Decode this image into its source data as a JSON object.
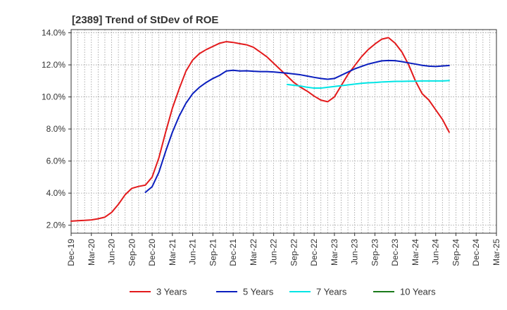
{
  "chart_data": {
    "type": "line",
    "title": "[2389]  Trend of StDev of ROE",
    "xlabel": "",
    "ylabel": "",
    "x_ticks": [
      "Dec-19",
      "Mar-20",
      "Jun-20",
      "Sep-20",
      "Dec-20",
      "Mar-21",
      "Jun-21",
      "Sep-21",
      "Dec-21",
      "Mar-22",
      "Jun-22",
      "Sep-22",
      "Dec-22",
      "Mar-23",
      "Jun-23",
      "Sep-23",
      "Dec-23",
      "Mar-24",
      "Jun-24",
      "Sep-24",
      "Dec-24",
      "Mar-25"
    ],
    "y_ticks": [
      "2.0%",
      "4.0%",
      "6.0%",
      "8.0%",
      "10.0%",
      "12.0%",
      "14.0%"
    ],
    "y_tick_values": [
      2,
      4,
      6,
      8,
      10,
      12,
      14
    ],
    "ylim": [
      1.5,
      14.2
    ],
    "grid": true,
    "legend_position": "bottom",
    "series": [
      {
        "name": "3 Years",
        "color": "#e31a1c",
        "points": [
          [
            0,
            2.25
          ],
          [
            1,
            2.28
          ],
          [
            2,
            2.3
          ],
          [
            3,
            2.33
          ],
          [
            4,
            2.4
          ],
          [
            5,
            2.5
          ],
          [
            6,
            2.8
          ],
          [
            7,
            3.3
          ],
          [
            8,
            3.9
          ],
          [
            9,
            4.3
          ],
          [
            10,
            4.42
          ],
          [
            11,
            4.5
          ],
          [
            12,
            5
          ],
          [
            13,
            6.2
          ],
          [
            14,
            7.8
          ],
          [
            15,
            9.3
          ],
          [
            16,
            10.5
          ],
          [
            17,
            11.6
          ],
          [
            18,
            12.3
          ],
          [
            19,
            12.7
          ],
          [
            20,
            12.95
          ],
          [
            21,
            13.15
          ],
          [
            22,
            13.35
          ],
          [
            23,
            13.45
          ],
          [
            24,
            13.4
          ],
          [
            25,
            13.32
          ],
          [
            26,
            13.25
          ],
          [
            27,
            13.1
          ],
          [
            28,
            12.8
          ],
          [
            29,
            12.5
          ],
          [
            30,
            12.1
          ],
          [
            31,
            11.7
          ],
          [
            32,
            11.3
          ],
          [
            33,
            10.9
          ],
          [
            34,
            10.6
          ],
          [
            35,
            10.35
          ],
          [
            36,
            10.05
          ],
          [
            37,
            9.8
          ],
          [
            38,
            9.7
          ],
          [
            39,
            10
          ],
          [
            40,
            10.7
          ],
          [
            41,
            11.4
          ],
          [
            42,
            11.95
          ],
          [
            43,
            12.5
          ],
          [
            44,
            12.95
          ],
          [
            45,
            13.3
          ],
          [
            46,
            13.6
          ],
          [
            47,
            13.7
          ],
          [
            48,
            13.35
          ],
          [
            49,
            12.8
          ],
          [
            50,
            12
          ],
          [
            51,
            11
          ],
          [
            52,
            10.2
          ],
          [
            53,
            9.8
          ],
          [
            54,
            9.2
          ],
          [
            55,
            8.6
          ],
          [
            56,
            7.8
          ]
        ]
      },
      {
        "name": "5 Years",
        "color": "#0a1ebe",
        "points": [
          [
            11,
            4.05
          ],
          [
            12,
            4.4
          ],
          [
            13,
            5.3
          ],
          [
            14,
            6.6
          ],
          [
            15,
            7.8
          ],
          [
            16,
            8.8
          ],
          [
            17,
            9.6
          ],
          [
            18,
            10.2
          ],
          [
            19,
            10.6
          ],
          [
            20,
            10.9
          ],
          [
            21,
            11.15
          ],
          [
            22,
            11.35
          ],
          [
            23,
            11.62
          ],
          [
            24,
            11.66
          ],
          [
            25,
            11.62
          ],
          [
            26,
            11.63
          ],
          [
            27,
            11.6
          ],
          [
            28,
            11.58
          ],
          [
            29,
            11.58
          ],
          [
            30,
            11.56
          ],
          [
            31,
            11.52
          ],
          [
            32,
            11.48
          ],
          [
            33,
            11.43
          ],
          [
            34,
            11.38
          ],
          [
            35,
            11.3
          ],
          [
            36,
            11.22
          ],
          [
            37,
            11.15
          ],
          [
            38,
            11.1
          ],
          [
            39,
            11.15
          ],
          [
            40,
            11.35
          ],
          [
            41,
            11.55
          ],
          [
            42,
            11.75
          ],
          [
            43,
            11.9
          ],
          [
            44,
            12.05
          ],
          [
            45,
            12.15
          ],
          [
            46,
            12.25
          ],
          [
            47,
            12.27
          ],
          [
            48,
            12.26
          ],
          [
            49,
            12.2
          ],
          [
            50,
            12.12
          ],
          [
            51,
            12.05
          ],
          [
            52,
            11.97
          ],
          [
            53,
            11.92
          ],
          [
            54,
            11.9
          ],
          [
            55,
            11.93
          ],
          [
            56,
            11.96
          ]
        ]
      },
      {
        "name": "7 Years",
        "color": "#00e5e5",
        "points": [
          [
            32,
            10.78
          ],
          [
            33,
            10.73
          ],
          [
            34,
            10.68
          ],
          [
            35,
            10.6
          ],
          [
            36,
            10.55
          ],
          [
            37,
            10.55
          ],
          [
            38,
            10.6
          ],
          [
            39,
            10.65
          ],
          [
            40,
            10.7
          ],
          [
            41,
            10.75
          ],
          [
            42,
            10.8
          ],
          [
            43,
            10.85
          ],
          [
            44,
            10.88
          ],
          [
            45,
            10.9
          ],
          [
            46,
            10.93
          ],
          [
            47,
            10.95
          ],
          [
            48,
            10.97
          ],
          [
            49,
            10.97
          ],
          [
            50,
            10.98
          ],
          [
            51,
            10.98
          ],
          [
            52,
            11
          ],
          [
            53,
            11
          ],
          [
            54,
            11
          ],
          [
            55,
            11
          ],
          [
            56,
            11.02
          ]
        ]
      },
      {
        "name": "10 Years",
        "color": "#1a7a1a",
        "points": []
      }
    ]
  }
}
